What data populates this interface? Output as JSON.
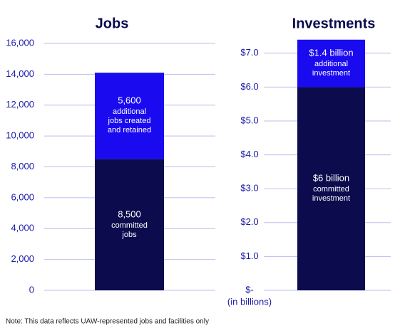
{
  "chart_data": [
    {
      "type": "stacked-bar",
      "title": "Jobs",
      "categories": [
        null
      ],
      "ylim": [
        0,
        16000
      ],
      "yticks": [
        0,
        {
          "value": 2000,
          "label": "2,000"
        },
        {
          "value": 4000,
          "label": "4,000"
        },
        {
          "value": 6000,
          "label": "6,000"
        },
        {
          "value": 8000,
          "label": "8,000"
        },
        {
          "value": 10000,
          "label": "10,000"
        },
        {
          "value": 12000,
          "label": "12,000"
        },
        {
          "value": 14000,
          "label": "14,000"
        },
        {
          "value": 16000,
          "label": "16,000"
        }
      ],
      "grid": true,
      "series": [
        {
          "name": "committed jobs",
          "color": "#0b0b4d",
          "values": [
            8500
          ],
          "value_labels": [
            "8,500"
          ]
        },
        {
          "name": "additional jobs created and retained",
          "color": "#1a0af0",
          "values": [
            5600
          ],
          "value_labels": [
            "5,600"
          ]
        }
      ]
    },
    {
      "type": "stacked-bar",
      "title": "Investments",
      "categories": [
        null
      ],
      "y_axis_label": "(in billions)",
      "ylim": [
        0,
        7.5
      ],
      "yticks": [
        {
          "value": 0,
          "label": "$-"
        },
        {
          "value": 1,
          "label": "$1.0"
        },
        {
          "value": 2,
          "label": "$2.0"
        },
        {
          "value": 3,
          "label": "$3.0"
        },
        {
          "value": 4,
          "label": "$4.0"
        },
        {
          "value": 5,
          "label": "$5.0"
        },
        {
          "value": 6,
          "label": "$6.0"
        },
        {
          "value": 7,
          "label": "$7.0"
        }
      ],
      "grid": true,
      "series": [
        {
          "name": "committed investment",
          "color": "#0b0b4d",
          "values": [
            6
          ],
          "value_labels": [
            "$6 billion"
          ]
        },
        {
          "name": "additional investment",
          "color": "#1a0af0",
          "values": [
            1.4
          ],
          "value_labels": [
            "$1.4 billion"
          ]
        }
      ]
    }
  ],
  "note": "Note: This data reflects UAW-represented jobs and facilities only"
}
